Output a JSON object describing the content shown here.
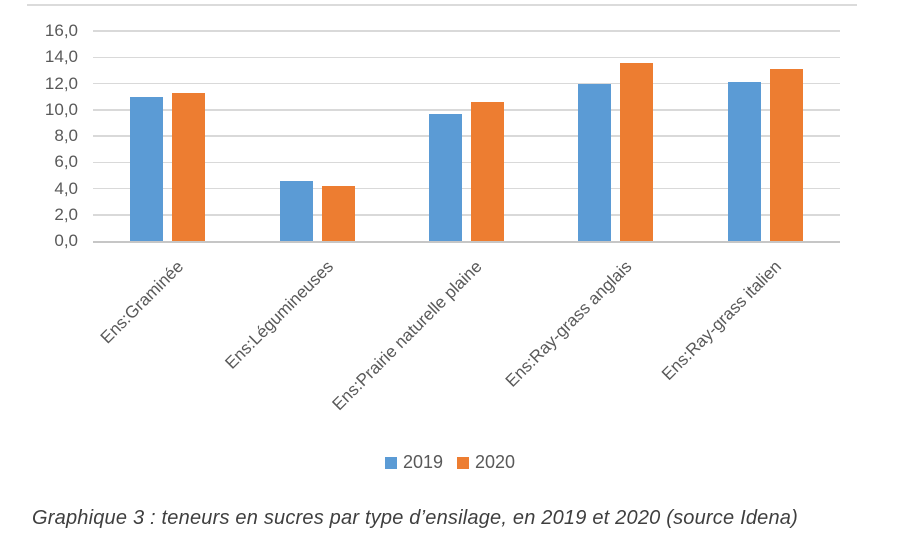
{
  "chart_data": {
    "type": "bar",
    "categories": [
      "Ens:Graminée",
      "Ens:Légumineuses",
      "Ens:Prairie naturelle plaine",
      "Ens:Ray-grass anglais",
      "Ens:Ray-grass italien"
    ],
    "series": [
      {
        "name": "2019",
        "color": "#5B9BD5",
        "values": [
          11.0,
          4.6,
          9.7,
          12.0,
          12.1
        ]
      },
      {
        "name": "2020",
        "color": "#ED7D31",
        "values": [
          11.3,
          4.2,
          10.6,
          13.6,
          13.1
        ]
      }
    ],
    "title": "",
    "xlabel": "",
    "ylabel": "",
    "ylim": [
      0,
      16
    ],
    "ytick_step": 2,
    "ytick_labels": [
      "0,0",
      "2,0",
      "4,0",
      "6,0",
      "8,0",
      "10,0",
      "12,0",
      "14,0",
      "16,0"
    ],
    "grid": true,
    "legend_position": "bottom"
  },
  "caption": "Graphique 3 : teneurs en sucres par type d’ensilage, en 2019 et 2020 (source Idena)",
  "styles": {
    "grid_color": "#D9D9D9",
    "axis_color": "#C6C6C6",
    "tick_label_color": "#595959",
    "caption_color": "#3F3F3F",
    "top_rule_color": "#DBDBDB"
  }
}
